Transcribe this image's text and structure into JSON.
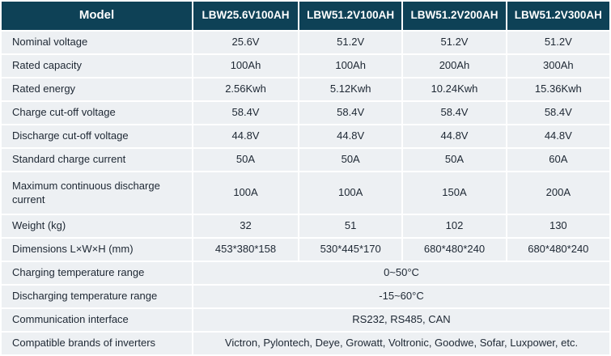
{
  "colors": {
    "header_bg": "#0e4156",
    "row_bg": "#edf0f3",
    "header_text": "#ffffff",
    "body_text": "#1d2733"
  },
  "table": {
    "header": {
      "model_label": "Model",
      "columns": [
        "LBW25.6V100AH",
        "LBW51.2V100AH",
        "LBW51.2V200AH",
        "LBW51.2V300AH"
      ]
    },
    "rows": [
      {
        "label": "Nominal voltage",
        "values": [
          "25.6V",
          "51.2V",
          "51.2V",
          "51.2V"
        ]
      },
      {
        "label": "Rated capacity",
        "values": [
          "100Ah",
          "100Ah",
          "200Ah",
          "300Ah"
        ]
      },
      {
        "label": "Rated energy",
        "values": [
          "2.56Kwh",
          "5.12Kwh",
          "10.24Kwh",
          "15.36Kwh"
        ]
      },
      {
        "label": "Charge cut-off voltage",
        "values": [
          "58.4V",
          "58.4V",
          "58.4V",
          "58.4V"
        ]
      },
      {
        "label": "Discharge cut-off voltage",
        "values": [
          "44.8V",
          "44.8V",
          "44.8V",
          "44.8V"
        ]
      },
      {
        "label": "Standard charge current",
        "values": [
          "50A",
          "50A",
          "50A",
          "60A"
        ]
      },
      {
        "label": "Maximum continuous discharge current",
        "values": [
          "100A",
          "100A",
          "150A",
          "200A"
        ]
      },
      {
        "label": "Weight (kg)",
        "values": [
          "32",
          "51",
          "102",
          "130"
        ]
      },
      {
        "label": "Dimensions L×W×H (mm)",
        "values": [
          "453*380*158",
          "530*445*170",
          "680*480*240",
          "680*480*240"
        ]
      }
    ],
    "merged_rows": [
      {
        "label": "Charging temperature range",
        "value": "0~50°C"
      },
      {
        "label": "Discharging temperature range",
        "value": "-15~60°C"
      },
      {
        "label": "Communication interface",
        "value": "RS232, RS485, CAN"
      },
      {
        "label": "Compatible brands of inverters",
        "value": "Victron, Pylontech, Deye, Growatt, Voltronic, Goodwe, Sofar, Luxpower, etc."
      }
    ]
  }
}
